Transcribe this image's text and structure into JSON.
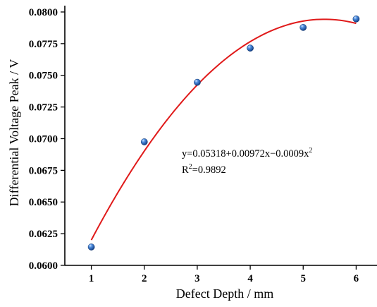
{
  "chart_data": {
    "type": "scatter",
    "xlabel": "Defect Depth / mm",
    "ylabel": "Differential Voltage Peak / V",
    "xlim": [
      0.5,
      6.5
    ],
    "ylim": [
      0.06,
      0.0805
    ],
    "xticks": [
      1,
      2,
      3,
      4,
      5,
      6
    ],
    "yticks": [
      0.06,
      0.0625,
      0.065,
      0.0675,
      0.07,
      0.0725,
      0.075,
      0.0775,
      0.08
    ],
    "ytick_labels": [
      "0.0600",
      "0.0625",
      "0.0650",
      "0.0675",
      "0.0700",
      "0.0725",
      "0.0750",
      "0.0775",
      "0.0800"
    ],
    "grid": false,
    "series": [
      {
        "x": [
          1,
          2,
          3,
          4,
          5,
          6
        ],
        "y": [
          0.06145,
          0.06975,
          0.07445,
          0.07715,
          0.07878,
          0.07945
        ],
        "color": "#2f6fbf"
      }
    ],
    "fit": {
      "coefficients": [
        0.05318,
        0.00972,
        -0.0009
      ],
      "x_range": [
        1,
        6
      ],
      "color": "#e01a1a"
    },
    "annotations": {
      "equation_prefix": "y=0.05318+0.00972x−0.0009x",
      "equation_exp": "2",
      "r2_prefix": "R",
      "r2_exp": "2",
      "r2_suffix": "=0.9892"
    }
  }
}
